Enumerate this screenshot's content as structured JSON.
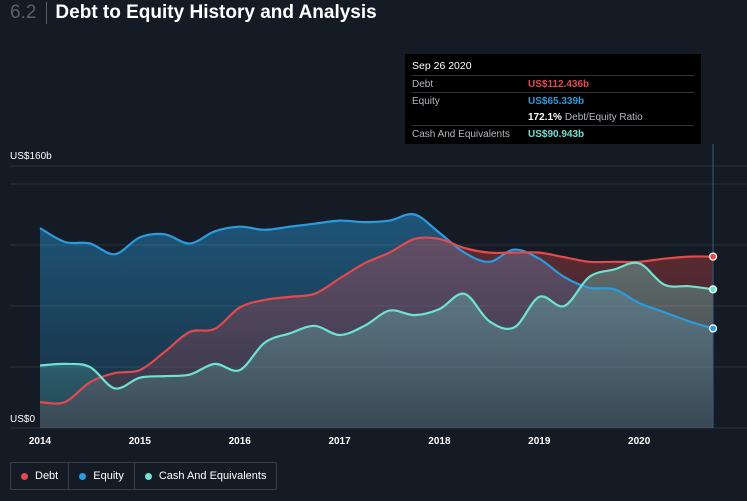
{
  "header": {
    "section_number": "6.2",
    "title": "Debt to Equity History and Analysis"
  },
  "tooltip": {
    "date": "Sep 26 2020",
    "debt_label": "Debt",
    "debt_value": "US$112.436b",
    "equity_label": "Equity",
    "equity_value": "US$65.339b",
    "ratio_value": "172.1%",
    "ratio_label": "Debt/Equity Ratio",
    "cash_label": "Cash And Equivalents",
    "cash_value": "US$90.943b"
  },
  "colors": {
    "debt": "#e24a4e",
    "equity": "#2a9bde",
    "cash": "#6fe3d3",
    "background": "#151b24"
  },
  "legend": [
    {
      "label": "Debt",
      "color": "#e24a4e"
    },
    {
      "label": "Equity",
      "color": "#2a9bde"
    },
    {
      "label": "Cash And Equivalents",
      "color": "#6fe3d3"
    }
  ],
  "chart_data": {
    "type": "area",
    "ylabel_top": "US$160b",
    "ylabel_bottom": "US$0",
    "ylim": [
      0,
      160
    ],
    "xlim": [
      2014.0,
      2021.0
    ],
    "x_ticks": [
      {
        "value": 2014,
        "label": "2014"
      },
      {
        "value": 2015,
        "label": "2015"
      },
      {
        "value": 2016,
        "label": "2016"
      },
      {
        "value": 2017,
        "label": "2017"
      },
      {
        "value": 2018,
        "label": "2018"
      },
      {
        "value": 2019,
        "label": "2019"
      },
      {
        "value": 2020,
        "label": "2020"
      }
    ],
    "grid": true,
    "legend_position": "bottom-left",
    "series": [
      {
        "name": "Debt",
        "x": [
          2014.0,
          2014.25,
          2014.5,
          2014.75,
          2015.0,
          2015.25,
          2015.5,
          2015.75,
          2016.0,
          2016.25,
          2016.5,
          2016.75,
          2017.0,
          2017.25,
          2017.5,
          2017.75,
          2018.0,
          2018.25,
          2018.5,
          2018.75,
          2019.0,
          2019.25,
          2019.5,
          2019.75,
          2020.0,
          2020.25,
          2020.5,
          2020.74
        ],
        "values": [
          17,
          17,
          30,
          36,
          38,
          50,
          63,
          65,
          79,
          84,
          86,
          88,
          98,
          108,
          115,
          124,
          124,
          118,
          115,
          115,
          115,
          112,
          109,
          109,
          109,
          111,
          112.4,
          112.4
        ]
      },
      {
        "name": "Equity",
        "x": [
          2014.0,
          2014.25,
          2014.5,
          2014.75,
          2015.0,
          2015.25,
          2015.5,
          2015.75,
          2016.0,
          2016.25,
          2016.5,
          2016.75,
          2017.0,
          2017.25,
          2017.5,
          2017.75,
          2018.0,
          2018.25,
          2018.5,
          2018.75,
          2019.0,
          2019.25,
          2019.5,
          2019.75,
          2020.0,
          2020.25,
          2020.5,
          2020.74
        ],
        "values": [
          131,
          122,
          121,
          114,
          125,
          127,
          121,
          129,
          132,
          130,
          132,
          134,
          136,
          135,
          136,
          140,
          128,
          115,
          109,
          117,
          111,
          99,
          92,
          91,
          82,
          76,
          70,
          65.3
        ]
      },
      {
        "name": "Cash And Equivalents",
        "x": [
          2014.0,
          2014.25,
          2014.5,
          2014.75,
          2015.0,
          2015.25,
          2015.5,
          2015.75,
          2016.0,
          2016.25,
          2016.5,
          2016.75,
          2017.0,
          2017.25,
          2017.5,
          2017.75,
          2018.0,
          2018.25,
          2018.5,
          2018.75,
          2019.0,
          2019.25,
          2019.5,
          2019.75,
          2020.0,
          2020.25,
          2020.5,
          2020.74
        ],
        "values": [
          41,
          42,
          40,
          26,
          33,
          34,
          35,
          42,
          38,
          56,
          62,
          67,
          61,
          67,
          77,
          74,
          78,
          88,
          70,
          66,
          86,
          80,
          99,
          104,
          108,
          94,
          93,
          90.9
        ]
      }
    ]
  }
}
